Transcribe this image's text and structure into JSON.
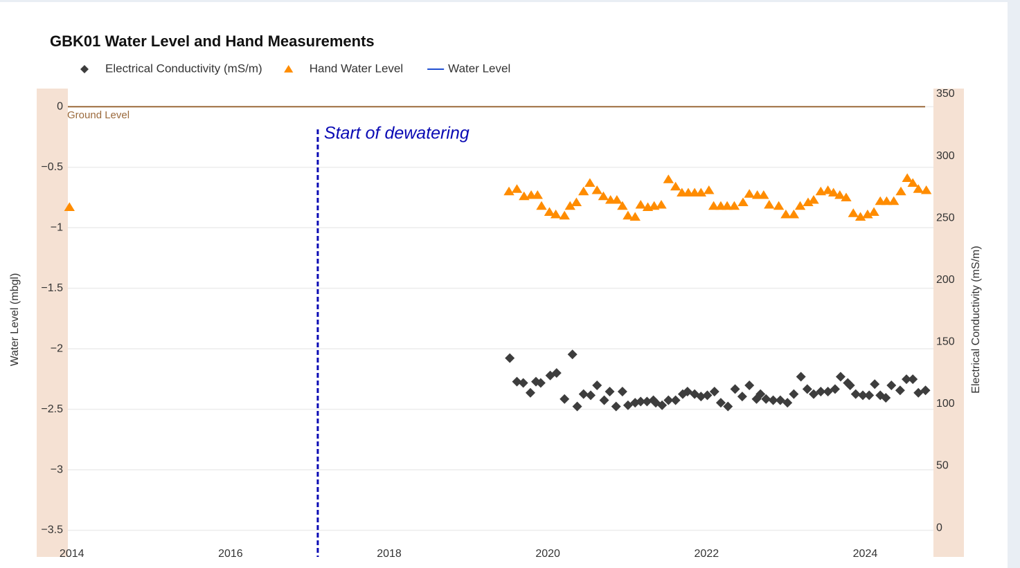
{
  "chart_data": {
    "type": "scatter",
    "title": "GBK01 Water Level and Hand Measurements",
    "ylabel": "Water Level (mbgl)",
    "y2label": "Electrical Conductivity (mS/m)",
    "xlim": [
      2013.95,
      2024.86
    ],
    "xticks": [
      2014,
      2016,
      2018,
      2020,
      2022,
      2024
    ],
    "ylim": [
      -3.72,
      0.15
    ],
    "yticks": [
      0,
      {
        "value": -0.5,
        "label": "−0.5"
      },
      {
        "value": -1,
        "label": "−1"
      },
      {
        "value": -1.5,
        "label": "−1.5"
      },
      {
        "value": -2,
        "label": "−2"
      },
      {
        "value": -2.5,
        "label": "−2.5"
      },
      {
        "value": -3,
        "label": "−3"
      },
      {
        "value": -3.5,
        "label": "−3.5"
      }
    ],
    "y2lim": [
      -18.4,
      359.5
    ],
    "y2ticks": [
      0,
      50,
      100,
      150,
      200,
      250,
      300,
      350
    ],
    "grid": true,
    "annotations": [
      {
        "text": "Ground Level",
        "y": 0,
        "color": "#9b6a3c"
      },
      {
        "text": "Start of dewatering",
        "x": 2017.1,
        "color": "#0a0ab4"
      }
    ],
    "series": [
      {
        "name": "Electrical Conductivity (mS/m)",
        "color": "#3d3d3d",
        "symbol": "diamond",
        "axis": "y2",
        "x": [
          2019.52,
          2019.61,
          2019.69,
          2019.78,
          2019.85,
          2019.91,
          2020.03,
          2020.11,
          2020.21,
          2020.31,
          2020.37,
          2020.45,
          2020.54,
          2020.62,
          2020.71,
          2020.78,
          2020.86,
          2020.94,
          2021.01,
          2021.1,
          2021.17,
          2021.25,
          2021.33,
          2021.36,
          2021.44,
          2021.52,
          2021.61,
          2021.7,
          2021.76,
          2021.85,
          2021.93,
          2022.01,
          2022.1,
          2022.18,
          2022.27,
          2022.36,
          2022.45,
          2022.54,
          2022.63,
          2022.68,
          2022.75,
          2022.84,
          2022.93,
          2023.02,
          2023.1,
          2023.19,
          2023.27,
          2023.35,
          2023.44,
          2023.53,
          2023.62,
          2023.69,
          2023.78,
          2023.81,
          2023.88,
          2023.97,
          2024.05,
          2024.12,
          2024.19,
          2024.26,
          2024.33,
          2024.44,
          2024.52,
          2024.6,
          2024.67,
          2024.76
        ],
        "values": [
          142,
          123,
          122,
          114,
          123,
          122,
          128,
          130,
          109,
          145,
          103,
          113,
          112,
          120,
          108,
          115,
          103,
          115,
          104,
          106,
          107,
          107,
          108,
          106,
          104,
          108,
          108,
          113,
          115,
          113,
          111,
          112,
          115,
          106,
          103,
          117,
          111,
          120,
          109,
          113,
          109,
          108,
          108,
          106,
          113,
          127,
          117,
          113,
          115,
          115,
          117,
          127,
          122,
          120,
          113,
          112,
          112,
          121,
          112,
          110,
          120,
          116,
          125,
          125,
          114,
          116
        ]
      },
      {
        "name": "Hand Water Level",
        "color": "#ff8c00",
        "symbol": "triangle-up",
        "x": [
          2013.97,
          2019.51,
          2019.61,
          2019.7,
          2019.79,
          2019.87,
          2019.92,
          2020.02,
          2020.1,
          2020.21,
          2020.28,
          2020.36,
          2020.45,
          2020.53,
          2020.62,
          2020.7,
          2020.79,
          2020.87,
          2020.94,
          2021.01,
          2021.1,
          2021.17,
          2021.26,
          2021.34,
          2021.43,
          2021.52,
          2021.61,
          2021.69,
          2021.77,
          2021.85,
          2021.93,
          2022.03,
          2022.09,
          2022.18,
          2022.26,
          2022.35,
          2022.46,
          2022.54,
          2022.64,
          2022.72,
          2022.79,
          2022.91,
          2023.0,
          2023.1,
          2023.18,
          2023.28,
          2023.35,
          2023.44,
          2023.53,
          2023.6,
          2023.68,
          2023.76,
          2023.85,
          2023.94,
          2024.03,
          2024.11,
          2024.19,
          2024.27,
          2024.36,
          2024.45,
          2024.53,
          2024.6,
          2024.67,
          2024.77
        ],
        "values": [
          -0.83,
          -0.7,
          -0.68,
          -0.74,
          -0.73,
          -0.73,
          -0.82,
          -0.87,
          -0.89,
          -0.9,
          -0.82,
          -0.79,
          -0.7,
          -0.63,
          -0.69,
          -0.74,
          -0.77,
          -0.77,
          -0.82,
          -0.9,
          -0.91,
          -0.81,
          -0.83,
          -0.82,
          -0.81,
          -0.6,
          -0.66,
          -0.71,
          -0.71,
          -0.71,
          -0.71,
          -0.69,
          -0.82,
          -0.82,
          -0.82,
          -0.82,
          -0.79,
          -0.72,
          -0.73,
          -0.73,
          -0.81,
          -0.82,
          -0.89,
          -0.89,
          -0.82,
          -0.79,
          -0.77,
          -0.7,
          -0.69,
          -0.71,
          -0.73,
          -0.75,
          -0.88,
          -0.91,
          -0.89,
          -0.87,
          -0.78,
          -0.78,
          -0.78,
          -0.7,
          -0.59,
          -0.63,
          -0.68,
          -0.69
        ]
      },
      {
        "name": "Water Level",
        "color": "#1f4fd1",
        "symbol": "line",
        "x": [],
        "values": []
      }
    ]
  }
}
